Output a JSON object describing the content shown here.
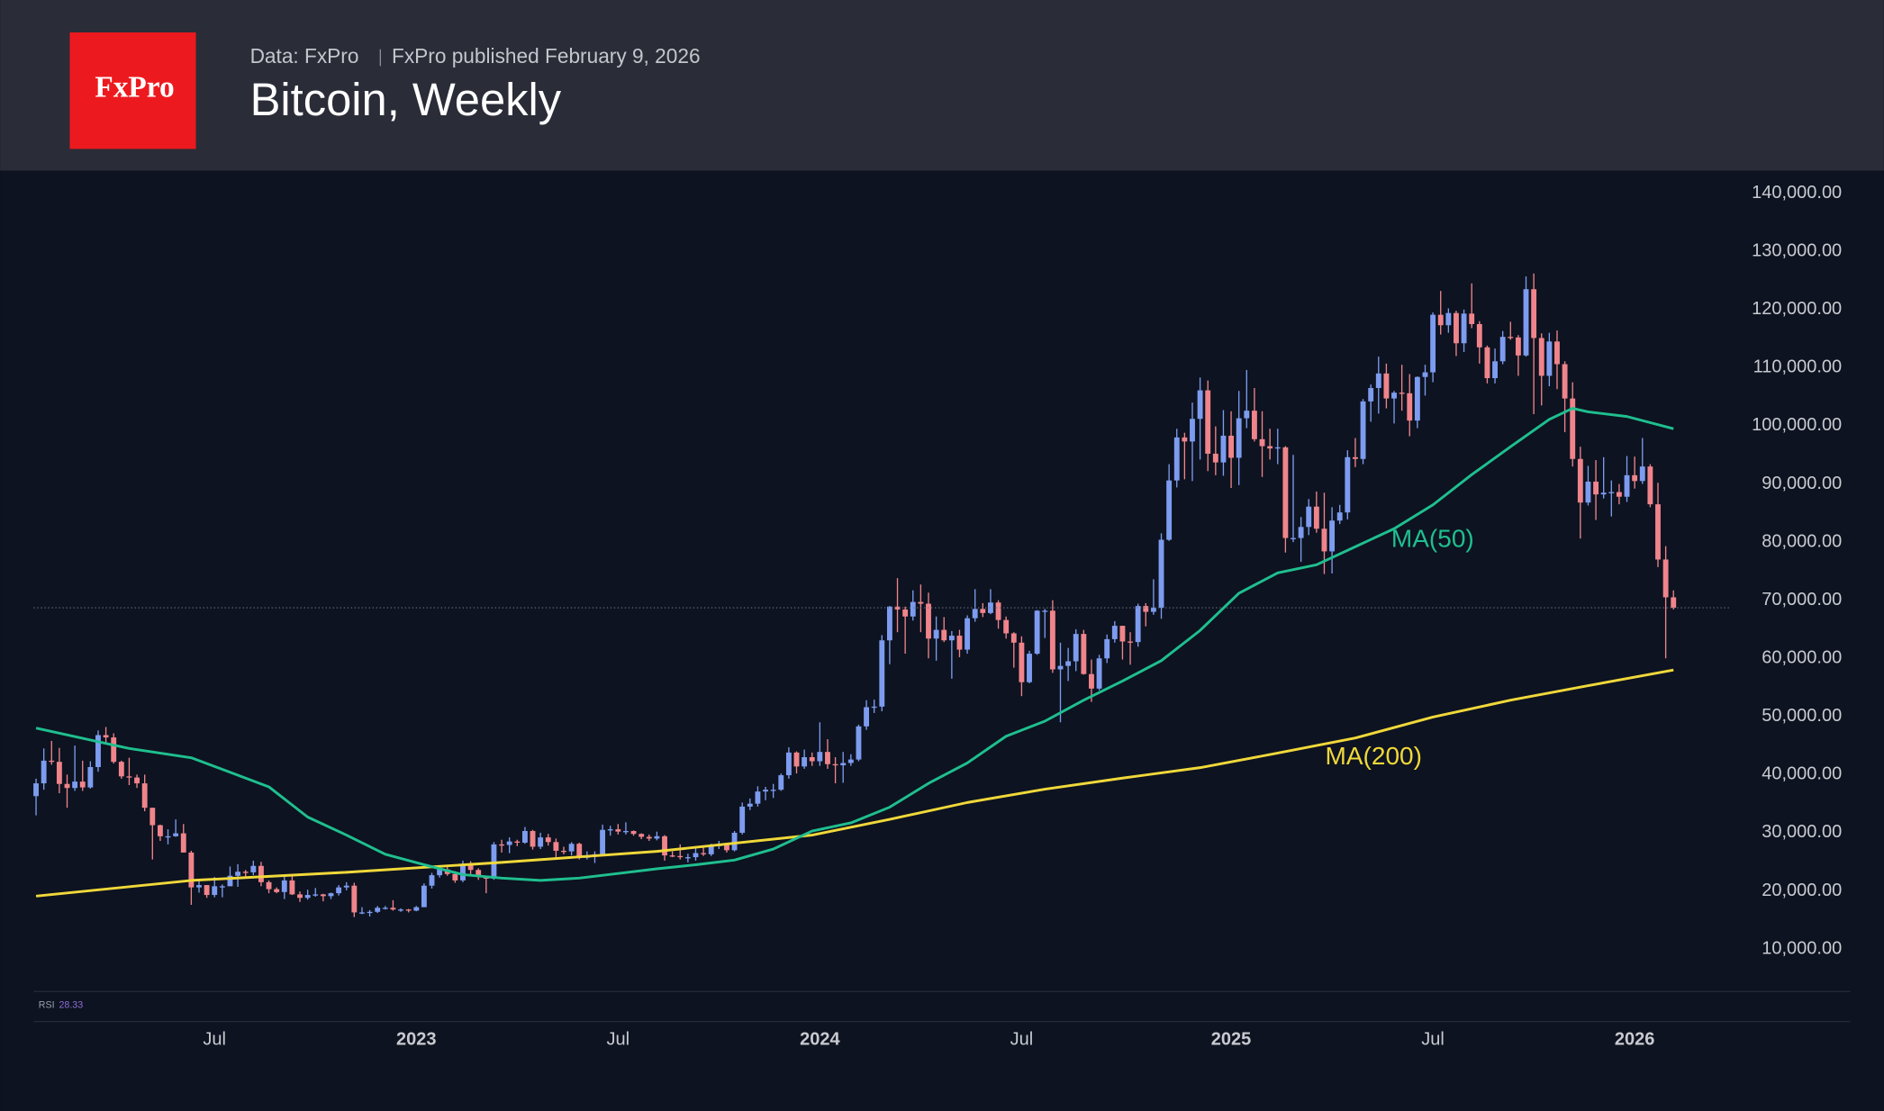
{
  "header": {
    "logo": "FxPro",
    "source": "Data: FxPro",
    "published": "FxPro published February 9, 2026",
    "title": "Bitcoin, Weekly"
  },
  "chart_data": {
    "type": "candlestick",
    "up_color": "#7d9cf0",
    "down_color": "#f0848b",
    "xlim": [
      -0.3,
      218.3
    ],
    "xticks": [
      {
        "value": 23,
        "label": "Jul"
      },
      {
        "value": 49,
        "label": "2023",
        "bold": true
      },
      {
        "value": 75,
        "label": "Jul"
      },
      {
        "value": 101,
        "label": "2024",
        "bold": true
      },
      {
        "value": 127,
        "label": "Jul"
      },
      {
        "value": 154,
        "label": "2025",
        "bold": true
      },
      {
        "value": 180,
        "label": "Jul"
      },
      {
        "value": 206,
        "label": "2026",
        "bold": true
      }
    ],
    "ylim": [
      2800,
      143700
    ],
    "yticks": [
      {
        "value": 10000,
        "label": "10,000.00"
      },
      {
        "value": 20000,
        "label": "20,000.00"
      },
      {
        "value": 30000,
        "label": "30,000.00"
      },
      {
        "value": 40000,
        "label": "40,000.00"
      },
      {
        "value": 50000,
        "label": "50,000.00"
      },
      {
        "value": 60000,
        "label": "60,000.00"
      },
      {
        "value": 70000,
        "label": "70,000.00"
      },
      {
        "value": 80000,
        "label": "80,000.00"
      },
      {
        "value": 90000,
        "label": "90,000.00"
      },
      {
        "value": 100000,
        "label": "100,000.00"
      },
      {
        "value": 110000,
        "label": "110,000.00"
      },
      {
        "value": 120000,
        "label": "120,000.00"
      },
      {
        "value": 130000,
        "label": "130,000.00"
      },
      {
        "value": 140000,
        "label": "140,000.00"
      }
    ],
    "open": [
      36300,
      38500,
      42400,
      42200,
      38400,
      37700,
      38800,
      37800,
      41300,
      46800,
      46400,
      42200,
      39700,
      39500,
      38500,
      34300,
      31300,
      29400,
      29400,
      29900,
      26600,
      20600,
      21000,
      19300,
      20800,
      20800,
      22600,
      23300,
      23200,
      24300,
      21500,
      20300,
      19800,
      21800,
      19400,
      18800,
      19300,
      19400,
      19100,
      19600,
      20600,
      20900,
      16300,
      16300,
      16400,
      17100,
      17100,
      16800,
      16800,
      16600,
      17200,
      20900,
      22700,
      23700,
      22900,
      21800,
      24600,
      23600,
      22400,
      22100,
      28000,
      27900,
      28500,
      28300,
      30300,
      27600,
      29200,
      28400,
      26900,
      26800,
      28100,
      25800,
      25900,
      26300,
      30500,
      30600,
      30200,
      30300,
      29800,
      29300,
      29000,
      29400,
      26100,
      26000,
      25800,
      25800,
      26500,
      26300,
      27900,
      27900,
      27000,
      30000,
      34500,
      35000,
      37100,
      37400,
      37400,
      39900,
      43800,
      41400,
      43000,
      42300,
      43900,
      41800,
      41600,
      42000,
      42600,
      48300,
      51600,
      51700,
      63100,
      68900,
      68400,
      67200,
      69700,
      69400,
      63400,
      64900,
      63100,
      63900,
      61500,
      66900,
      68500,
      67800,
      69600,
      66600,
      64300,
      62700,
      55900,
      60800,
      68200,
      68200,
      58100,
      58700,
      59500,
      64200,
      57300,
      54800,
      60000,
      63300,
      65600,
      62900,
      62800,
      69000,
      68000,
      68700,
      80400,
      90600,
      98000,
      97300,
      101200,
      106100,
      95200,
      93700,
      98300,
      94500,
      101300,
      102600,
      97700,
      96500,
      96100,
      96300,
      80700,
      80700,
      82600,
      86100,
      82300,
      78400,
      83700,
      85100,
      94600,
      94300,
      104200,
      106500,
      109000,
      104700,
      105700,
      105600,
      100900,
      108400,
      109200,
      119100,
      117300,
      119400,
      114200,
      119300,
      117500,
      113500,
      108200,
      111100,
      115300,
      115200,
      112100,
      123500,
      115100,
      108600,
      114500,
      110600,
      104700,
      94300,
      86800,
      90400,
      88200,
      88500,
      88600,
      87800,
      91500,
      90500,
      93000,
      86500,
      77000,
      70500
    ],
    "high": [
      39300,
      44500,
      45800,
      44600,
      40000,
      45000,
      42400,
      42300,
      47600,
      48200,
      47100,
      42400,
      42900,
      40000,
      40000,
      34300,
      31400,
      30600,
      32300,
      31500,
      26900,
      21800,
      21000,
      22400,
      21100,
      24200,
      24600,
      23600,
      25200,
      25000,
      21800,
      20600,
      22800,
      22500,
      19900,
      20200,
      20500,
      19500,
      19700,
      21000,
      21500,
      21400,
      17200,
      16700,
      17400,
      17400,
      18400,
      17000,
      16900,
      17400,
      21300,
      23100,
      23900,
      24200,
      23400,
      25200,
      25100,
      23900,
      22600,
      28400,
      28800,
      29200,
      28800,
      31000,
      30500,
      30000,
      29800,
      29000,
      27600,
      28400,
      28300,
      26800,
      26800,
      31400,
      31200,
      31500,
      31800,
      30400,
      29900,
      29700,
      30200,
      29600,
      26800,
      28000,
      26400,
      27400,
      27500,
      28100,
      28600,
      27900,
      30300,
      35200,
      35900,
      38000,
      37900,
      38400,
      40200,
      44700,
      44000,
      44300,
      43800,
      49000,
      46100,
      43000,
      43900,
      43500,
      48600,
      52800,
      52900,
      64000,
      69000,
      73800,
      68900,
      71700,
      72700,
      71300,
      67200,
      67100,
      64700,
      64900,
      67400,
      71900,
      69500,
      71900,
      70000,
      67200,
      64500,
      63800,
      61300,
      68300,
      68500,
      70000,
      62700,
      61800,
      65000,
      64900,
      59800,
      60600,
      64100,
      66400,
      65600,
      64500,
      69400,
      69500,
      73600,
      81500,
      93400,
      99500,
      98800,
      104000,
      108300,
      107800,
      99900,
      102700,
      102500,
      106000,
      109600,
      106500,
      102500,
      99500,
      99500,
      96500,
      95000,
      84300,
      87400,
      88700,
      88500,
      86000,
      86400,
      95800,
      97900,
      104600,
      107100,
      111900,
      110700,
      106000,
      110500,
      108900,
      108500,
      110500,
      119500,
      123200,
      120200,
      119800,
      120000,
      124500,
      118000,
      113800,
      113300,
      116300,
      117900,
      115600,
      125700,
      126200,
      115900,
      116000,
      116400,
      111100,
      107500,
      96400,
      93100,
      94100,
      94600,
      90600,
      90000,
      94800,
      94700,
      97900,
      93400,
      90200,
      79300,
      71700
    ],
    "low": [
      33000,
      37400,
      41700,
      36800,
      34300,
      37200,
      37200,
      37600,
      40500,
      45200,
      41900,
      39300,
      38200,
      37700,
      33700,
      25400,
      28600,
      28000,
      29300,
      26600,
      17600,
      19700,
      18800,
      18900,
      18900,
      20800,
      20700,
      22400,
      22700,
      20800,
      19600,
      19600,
      18600,
      19300,
      18100,
      18500,
      19000,
      18200,
      18600,
      19200,
      20100,
      15500,
      16000,
      15600,
      16200,
      16800,
      16600,
      16400,
      16300,
      16500,
      17200,
      20400,
      22300,
      22600,
      21400,
      21500,
      22800,
      21900,
      19600,
      21900,
      26600,
      26500,
      27700,
      28100,
      27100,
      27200,
      27800,
      25800,
      26300,
      26100,
      25400,
      25400,
      24800,
      26300,
      29500,
      29700,
      29700,
      29500,
      28900,
      28600,
      28700,
      25200,
      25800,
      25400,
      24900,
      25200,
      26000,
      26000,
      27200,
      26600,
      26800,
      29700,
      33900,
      34500,
      35600,
      36000,
      37200,
      39300,
      40200,
      41000,
      41500,
      41500,
      41000,
      38500,
      38600,
      41500,
      42300,
      47700,
      50600,
      50900,
      59000,
      64500,
      60800,
      66500,
      64500,
      60000,
      59600,
      62800,
      56500,
      60200,
      60800,
      66300,
      67100,
      67600,
      65100,
      63400,
      58400,
      53500,
      55700,
      60600,
      63500,
      57500,
      49000,
      56100,
      57800,
      57200,
      52500,
      54500,
      59200,
      62700,
      59800,
      58900,
      62000,
      65500,
      67500,
      66800,
      80200,
      89400,
      90800,
      90500,
      94200,
      92200,
      91500,
      91400,
      89300,
      89800,
      99600,
      97300,
      91200,
      94200,
      93400,
      78200,
      80000,
      76600,
      81200,
      81600,
      74500,
      74600,
      83100,
      83900,
      92900,
      93400,
      100700,
      102100,
      103000,
      100400,
      102600,
      98200,
      99600,
      105200,
      107500,
      115700,
      116000,
      112000,
      112700,
      116800,
      110700,
      107300,
      107300,
      110600,
      114800,
      108600,
      111900,
      102000,
      103500,
      106800,
      106300,
      98900,
      93000,
      80600,
      86300,
      83800,
      87500,
      84400,
      86500,
      86900,
      89200,
      90000,
      86000,
      75700,
      60000,
      68400
    ],
    "close": [
      38500,
      42400,
      42200,
      38400,
      37700,
      38800,
      37800,
      41300,
      46800,
      46400,
      42200,
      39700,
      39500,
      38500,
      34300,
      31300,
      29400,
      29400,
      29900,
      26600,
      20600,
      21000,
      19300,
      20800,
      20800,
      22600,
      23300,
      23200,
      24300,
      21500,
      20300,
      19800,
      21800,
      19400,
      18800,
      19300,
      19400,
      19100,
      19600,
      20600,
      20900,
      16300,
      16300,
      16400,
      17100,
      17100,
      16800,
      16800,
      16600,
      17200,
      20900,
      22700,
      23700,
      22900,
      21800,
      24600,
      23600,
      22400,
      22100,
      28000,
      27900,
      28500,
      28300,
      30300,
      27600,
      29200,
      28400,
      26900,
      26800,
      28100,
      25800,
      25900,
      26300,
      30500,
      30600,
      30200,
      30300,
      29800,
      29300,
      29000,
      29400,
      26100,
      26000,
      25800,
      25800,
      26500,
      26300,
      27900,
      27900,
      27000,
      30000,
      34500,
      35000,
      37100,
      37400,
      37400,
      39900,
      43800,
      41400,
      43000,
      42300,
      43900,
      41800,
      41600,
      42000,
      42600,
      48300,
      51600,
      51700,
      63100,
      68900,
      68400,
      67200,
      69700,
      69400,
      63400,
      64900,
      63100,
      63900,
      61500,
      66900,
      68500,
      67800,
      69600,
      66600,
      64300,
      62700,
      55900,
      60800,
      68200,
      68200,
      58100,
      58700,
      59500,
      64200,
      57300,
      54800,
      60000,
      63300,
      65600,
      62900,
      62800,
      69000,
      68000,
      68700,
      80400,
      90600,
      98000,
      97300,
      101200,
      106100,
      95200,
      93700,
      98300,
      94500,
      101300,
      102600,
      97700,
      96500,
      96100,
      96300,
      80700,
      80700,
      82600,
      86100,
      82300,
      78400,
      83700,
      85100,
      94600,
      94300,
      104200,
      106500,
      109000,
      104700,
      105700,
      105600,
      100900,
      108400,
      109200,
      119100,
      117300,
      119400,
      114200,
      119300,
      117500,
      113500,
      108200,
      111100,
      115300,
      115200,
      112100,
      123500,
      115100,
      108600,
      114500,
      110600,
      104700,
      94300,
      86800,
      90400,
      88200,
      88500,
      88600,
      87800,
      91500,
      90500,
      93000,
      86500,
      77000,
      70500,
      68700
    ],
    "series": [
      {
        "name": "MA(200)",
        "color": "#f0d83a",
        "x": [
          0,
          20,
          40,
          60,
          80,
          100,
          110,
          120,
          130,
          140,
          150,
          160,
          170,
          180,
          190,
          200,
          211
        ],
        "values": [
          19100,
          21800,
          23200,
          24900,
          26800,
          29600,
          32300,
          35200,
          37500,
          39400,
          41200,
          43700,
          46300,
          49900,
          52800,
          55300,
          58000
        ]
      },
      {
        "name": "MA(50)",
        "color": "#1fbf8f",
        "x": [
          0,
          12,
          20,
          25,
          30,
          35,
          40,
          45,
          50,
          55,
          60,
          65,
          70,
          75,
          80,
          85,
          90,
          95,
          100,
          105,
          110,
          115,
          120,
          125,
          130,
          135,
          140,
          145,
          150,
          155,
          160,
          165,
          170,
          175,
          180,
          185,
          190,
          195,
          198,
          200,
          205,
          211
        ],
        "values": [
          48000,
          44500,
          42900,
          40400,
          37900,
          32700,
          29600,
          26300,
          24500,
          22800,
          22200,
          21800,
          22200,
          23000,
          23800,
          24500,
          25300,
          27200,
          30300,
          31700,
          34400,
          38500,
          42000,
          46600,
          49200,
          52800,
          56100,
          59600,
          64800,
          71200,
          74700,
          76100,
          79200,
          82300,
          86400,
          91600,
          96400,
          101100,
          103000,
          102400,
          101600,
          99500
        ]
      }
    ],
    "indicator": {
      "name": "RSI",
      "value": 28.33
    }
  }
}
